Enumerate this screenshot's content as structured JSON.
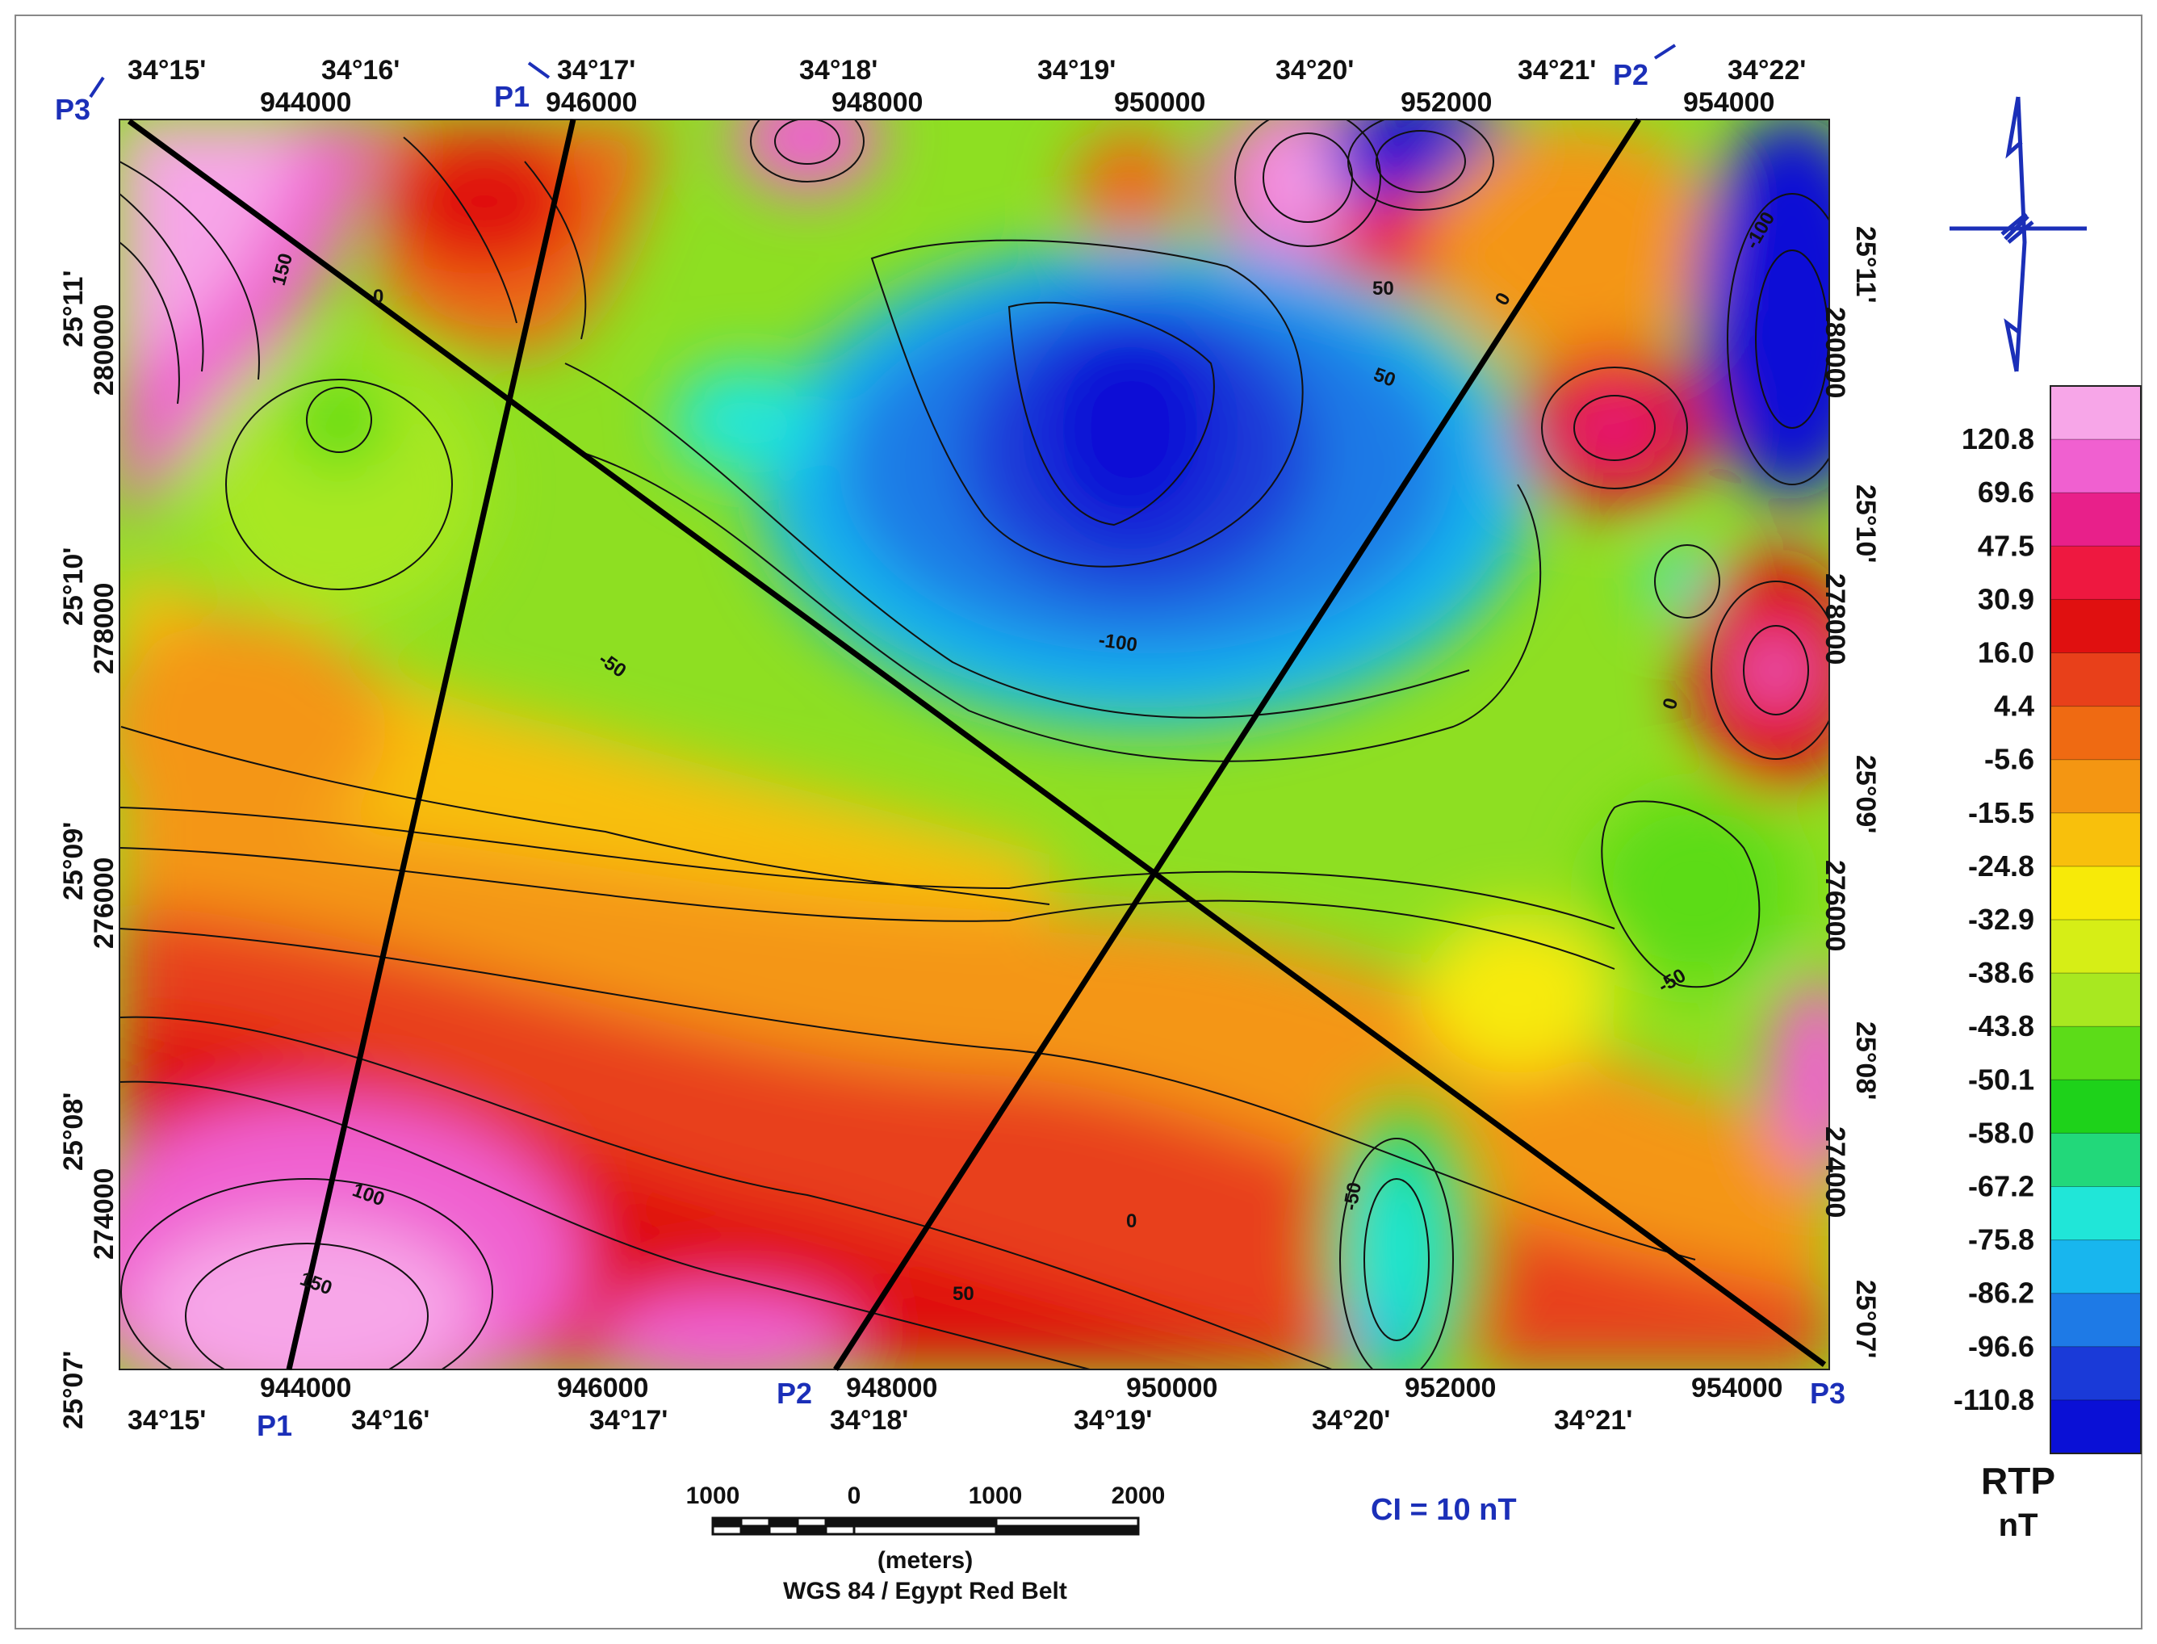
{
  "top_axis": {
    "lon_labels": [
      "34°15'",
      "34°16'",
      "34°17'",
      "34°18'",
      "34°19'",
      "34°20'",
      "34°21'",
      "34°22'"
    ],
    "easting_labels": [
      "944000",
      "946000",
      "948000",
      "950000",
      "952000",
      "954000"
    ]
  },
  "bottom_axis": {
    "lon_labels": [
      "34°15'",
      "34°16'",
      "34°17'",
      "34°18'",
      "34°19'",
      "34°20'",
      "34°21'"
    ],
    "easting_labels": [
      "944000",
      "946000",
      "948000",
      "950000",
      "952000",
      "954000"
    ]
  },
  "left_axis": {
    "lat_labels": [
      "25°11'",
      "25°10'",
      "25°09'",
      "25°08'",
      "25°07'"
    ],
    "northing_labels": [
      "280000",
      "278000",
      "276000",
      "274000"
    ]
  },
  "right_axis": {
    "lat_labels": [
      "25°11'",
      "25°10'",
      "25°09'",
      "25°08'",
      "25°07'"
    ],
    "northing_labels": [
      "280000",
      "278000",
      "276000",
      "274000"
    ]
  },
  "profiles": [
    {
      "id": "P1",
      "start": "P1",
      "end": "P1"
    },
    {
      "id": "P2",
      "start": "P2",
      "end": "P2"
    },
    {
      "id": "P3",
      "start": "P3",
      "end": "P3"
    }
  ],
  "contour_labels": [
    "150",
    "0",
    "-50",
    "-100",
    "50",
    "100",
    "-50",
    "0",
    "100",
    "150",
    "50",
    "0",
    "-50",
    "-50",
    "50",
    "-100"
  ],
  "legend": {
    "title": "RTP",
    "unit": "nT",
    "values": [
      "120.8",
      "69.6",
      "47.5",
      "30.9",
      "16.0",
      "4.4",
      "-5.6",
      "-15.5",
      "-24.8",
      "-32.9",
      "-38.6",
      "-43.8",
      "-50.1",
      "-58.0",
      "-67.2",
      "-75.8",
      "-86.2",
      "-96.6",
      "-110.8"
    ],
    "colors": [
      "#f7a6e8",
      "#f060d0",
      "#e8208a",
      "#ee1840",
      "#e01010",
      "#e8401a",
      "#ef6a12",
      "#f49612",
      "#f8c00c",
      "#f7ea08",
      "#d6ee16",
      "#a8e820",
      "#5cdc18",
      "#1ed21a",
      "#22d87a",
      "#20e6d8",
      "#18b6ee",
      "#1e7ae6",
      "#1a3ad8",
      "#0a10d6"
    ]
  },
  "contour_interval": "CI = 10 nT",
  "scale_bar": {
    "labels": [
      "1000",
      "0",
      "1000",
      "2000"
    ],
    "unit": "(meters)",
    "projection": "WGS 84 / Egypt Red Belt"
  },
  "north_arrow": {
    "icon": "north-arrow-icon",
    "color": "#1b2fb8"
  }
}
